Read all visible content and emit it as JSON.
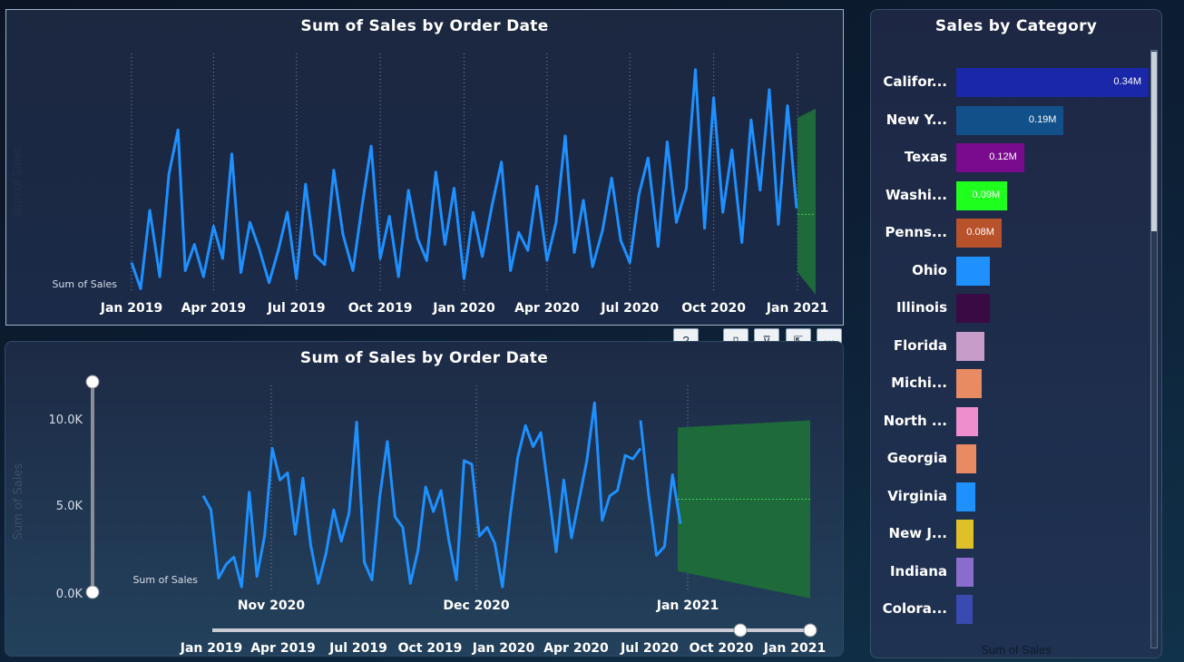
{
  "colors": {
    "line": "#1e90ff",
    "forecast": "#1e6a3a",
    "forecast_mid": "#3fcf5a"
  },
  "toolbar": {
    "icons": [
      "help-icon",
      "copy-icon",
      "filter-icon",
      "focus-mode-icon",
      "more-options-icon"
    ],
    "glyphs": [
      "?",
      "▯",
      "⊽",
      "⇱",
      "···"
    ]
  },
  "chart_data": [
    {
      "type": "line",
      "title": "Sum of Sales by Order Date",
      "ylabel": "Sum of Sales",
      "yaxis_title_faint": "Sum of Sales",
      "x_tick_labels": [
        "Jan 2019",
        "Apr 2019",
        "Jul 2019",
        "Oct 2019",
        "Jan 2020",
        "Apr 2020",
        "Jul 2020",
        "Oct 2020",
        "Jan 2021"
      ],
      "x_range": [
        "2019-01-01",
        "2021-01-31"
      ],
      "grid": "vertical dotted",
      "series": [
        {
          "name": "Sum of Sales",
          "x": [
            "2019-01-01",
            "2019-01-11",
            "2019-01-21",
            "2019-02-01",
            "2019-02-11",
            "2019-02-21",
            "2019-03-01",
            "2019-03-11",
            "2019-03-21",
            "2019-04-01",
            "2019-04-11",
            "2019-04-21",
            "2019-05-01",
            "2019-05-11",
            "2019-05-21",
            "2019-06-01",
            "2019-06-11",
            "2019-06-21",
            "2019-07-01",
            "2019-07-11",
            "2019-07-21",
            "2019-08-01",
            "2019-08-11",
            "2019-08-21",
            "2019-09-01",
            "2019-09-11",
            "2019-09-21",
            "2019-10-01",
            "2019-10-11",
            "2019-10-21",
            "2019-11-01",
            "2019-11-11",
            "2019-11-21",
            "2019-12-01",
            "2019-12-11",
            "2019-12-21",
            "2020-01-01",
            "2020-01-11",
            "2020-01-21",
            "2020-02-01",
            "2020-02-11",
            "2020-02-21",
            "2020-03-01",
            "2020-03-11",
            "2020-03-21",
            "2020-04-01",
            "2020-04-11",
            "2020-04-21",
            "2020-05-01",
            "2020-05-11",
            "2020-05-21",
            "2020-06-01",
            "2020-06-11",
            "2020-06-21",
            "2020-07-01",
            "2020-07-11",
            "2020-07-21",
            "2020-08-01",
            "2020-08-11",
            "2020-08-21",
            "2020-09-01",
            "2020-09-11",
            "2020-09-21",
            "2020-10-01",
            "2020-10-11",
            "2020-10-21",
            "2020-11-01",
            "2020-11-11",
            "2020-11-21",
            "2020-12-01",
            "2020-12-11",
            "2020-12-21",
            "2020-12-31"
          ],
          "y": [
            1600,
            300,
            4200,
            900,
            6000,
            8200,
            1200,
            2500,
            900,
            3400,
            1800,
            7000,
            1100,
            3600,
            2300,
            600,
            2200,
            4100,
            800,
            5500,
            2000,
            1500,
            6200,
            3000,
            1200,
            4400,
            7400,
            1800,
            3900,
            900,
            5200,
            2800,
            1700,
            6100,
            2500,
            5300,
            800,
            4100,
            1900,
            4500,
            6600,
            1200,
            3100,
            2200,
            5400,
            1700,
            3600,
            7900,
            2100,
            4700,
            1400,
            3200,
            5800,
            2700,
            1600,
            5000,
            6800,
            2400,
            7600,
            3600,
            5300,
            11200,
            3300,
            9800,
            4100,
            7200,
            2600,
            8700,
            5200,
            10200,
            3500,
            9400,
            4300
          ],
          "y_unit": "sales"
        }
      ],
      "forecast": {
        "start": "2021-01-01",
        "end": "2021-01-31",
        "mid": 4000,
        "upper": 8800,
        "lower": 0
      }
    },
    {
      "type": "line",
      "title": "Sum of Sales by Order Date",
      "ylabel": "Sum of Sales",
      "yaxis_title_faint": "Sum of Sales",
      "y_tick_labels": [
        "10.0K",
        "5.0K",
        "0.0K"
      ],
      "ylim": [
        0,
        12000
      ],
      "x_tick_labels": [
        "Nov 2020",
        "Dec 2020",
        "Jan 2021"
      ],
      "x_range": [
        "2020-10-04",
        "2021-01-31"
      ],
      "slider_labels": [
        "Jan 2019",
        "Apr 2019",
        "Jul 2019",
        "Oct 2019",
        "Jan 2020",
        "Apr 2020",
        "Jul 2020",
        "Oct 2020",
        "Jan 2021"
      ],
      "series": [
        {
          "name": "Sum of Sales",
          "x": [
            "2020-10-04",
            "2020-10-06",
            "2020-10-08",
            "2020-10-11",
            "2020-10-15",
            "2020-10-17",
            "2020-10-20",
            "2020-10-22",
            "2020-10-24",
            "2020-10-26",
            "2020-10-28",
            "2020-10-30",
            "2020-11-01",
            "2020-11-03",
            "2020-11-05",
            "2020-11-07",
            "2020-11-09",
            "2020-11-11",
            "2020-11-13",
            "2020-11-15",
            "2020-11-17",
            "2020-11-19",
            "2020-11-21",
            "2020-11-23",
            "2020-11-25",
            "2020-11-27",
            "2020-11-28",
            "2020-11-30",
            "2020-12-02",
            "2020-12-04",
            "2020-12-06",
            "2020-12-08",
            "2020-12-10",
            "2020-12-12",
            "2020-12-14",
            "2020-12-16",
            "2020-12-18",
            "2020-12-20",
            "2020-12-22",
            "2020-12-24",
            "2020-12-26",
            "2020-12-28",
            "2020-12-30",
            "2021-01-01",
            "2021-01-03",
            "2021-01-05",
            "2021-01-07",
            "2021-01-09",
            "2021-01-11",
            "2021-01-13",
            "2021-01-15",
            "2021-01-17",
            "2021-01-19",
            "2021-01-21",
            "2021-01-23",
            "2021-01-25",
            "2021-01-27",
            "2021-01-28"
          ],
          "y": [
            5500,
            4700,
            800,
            1600,
            2000,
            300,
            5700,
            900,
            3200,
            8200,
            6400,
            6800,
            3300,
            6500,
            2700,
            500,
            2200,
            4700,
            2900,
            4500,
            9700,
            1700,
            700,
            5400,
            8600,
            4300,
            3700,
            500,
            2400,
            6000,
            4600,
            5800,
            3000,
            700,
            7500,
            7300,
            3200,
            3700,
            2800,
            300,
            4300,
            7700,
            9500,
            8300,
            9100,
            5800,
            2300,
            6400,
            3100,
            5300,
            7500,
            10800,
            4100,
            5500,
            5800,
            7800,
            7600,
            8200
          ]
        },
        {
          "name": "Sum of Sales",
          "x": [
            "2021-01-01",
            "2021-01-03",
            "2021-01-05",
            "2021-01-07",
            "2021-01-09",
            "2021-01-10"
          ],
          "y": [
            9800,
            5600,
            2100,
            2600,
            6700,
            3900
          ]
        }
      ],
      "forecast": {
        "start": "2021-01-10",
        "end": "2021-01-31",
        "mid": 5300,
        "upper": 9700,
        "lower": 1200
      }
    },
    {
      "type": "bar",
      "orientation": "horizontal",
      "title": "Sales by Category",
      "xlabel": "Sum of Sales",
      "categories": [
        "Califor...",
        "New Y...",
        "Texas",
        "Washi...",
        "Penns...",
        "Ohio",
        "Illinois",
        "Florida",
        "Michi...",
        "North ...",
        "Georgia",
        "Virginia",
        "New J...",
        "Indiana",
        "Colora..."
      ],
      "values": [
        0.34,
        0.19,
        0.12,
        0.09,
        0.08,
        0.06,
        0.06,
        0.05,
        0.045,
        0.038,
        0.036,
        0.033,
        0.031,
        0.03,
        0.028
      ],
      "value_labels": [
        "0.34M",
        "0.19M",
        "0.12M",
        "0.09M",
        "0.08M",
        "",
        "",
        "",
        "",
        "",
        "",
        "",
        "",
        "",
        ""
      ],
      "value_unit": "M",
      "bar_colors": [
        "#1a27a8",
        "#12508a",
        "#7a0b8e",
        "#1eff1e",
        "#b8522a",
        "#1e90ff",
        "#3a0a44",
        "#c89cc8",
        "#e88a62",
        "#ee8ecc",
        "#e88a62",
        "#1e90ff",
        "#e0c028",
        "#8a6ccc",
        "#3a4ab0"
      ]
    }
  ]
}
